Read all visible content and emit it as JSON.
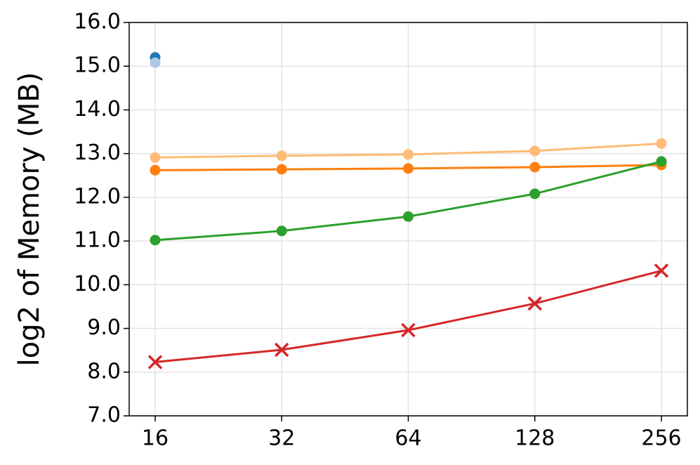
{
  "chart_data": {
    "type": "line",
    "y_label": "log2 of Memory (MB)",
    "categories": [
      "16",
      "32",
      "64",
      "128",
      "256"
    ],
    "series": [
      {
        "color": "#1f77b4",
        "marker": "circle",
        "values": [
          15.2,
          null,
          null,
          null,
          null
        ]
      },
      {
        "color": "#aec7e8",
        "marker": "circle",
        "values": [
          15.08,
          null,
          null,
          null,
          null
        ]
      },
      {
        "color": "#ffbb78",
        "marker": "circle",
        "values": [
          12.91,
          12.95,
          12.98,
          13.06,
          13.23
        ]
      },
      {
        "color": "#ff7f0e",
        "marker": "circle",
        "values": [
          12.62,
          12.64,
          12.66,
          12.69,
          12.74
        ]
      },
      {
        "color": "#2ca02c",
        "marker": "circle",
        "values": [
          11.02,
          11.23,
          11.56,
          12.08,
          12.82
        ]
      },
      {
        "color": "#d62728",
        "marker": "x",
        "values": [
          8.23,
          8.51,
          8.96,
          9.57,
          10.32
        ]
      }
    ],
    "ylim": [
      7,
      16
    ],
    "yticks": [
      {
        "value": 7,
        "label": "7.0"
      },
      {
        "value": 8,
        "label": "8.0"
      },
      {
        "value": 9,
        "label": "9.0"
      },
      {
        "value": 10,
        "label": "10.0"
      },
      {
        "value": 11,
        "label": "11.0"
      },
      {
        "value": 12,
        "label": "12.0"
      },
      {
        "value": 13,
        "label": "13.0"
      },
      {
        "value": 14,
        "label": "14.0"
      },
      {
        "value": 15,
        "label": "15.0"
      },
      {
        "value": 16,
        "label": "16.0"
      }
    ],
    "grid": true
  }
}
